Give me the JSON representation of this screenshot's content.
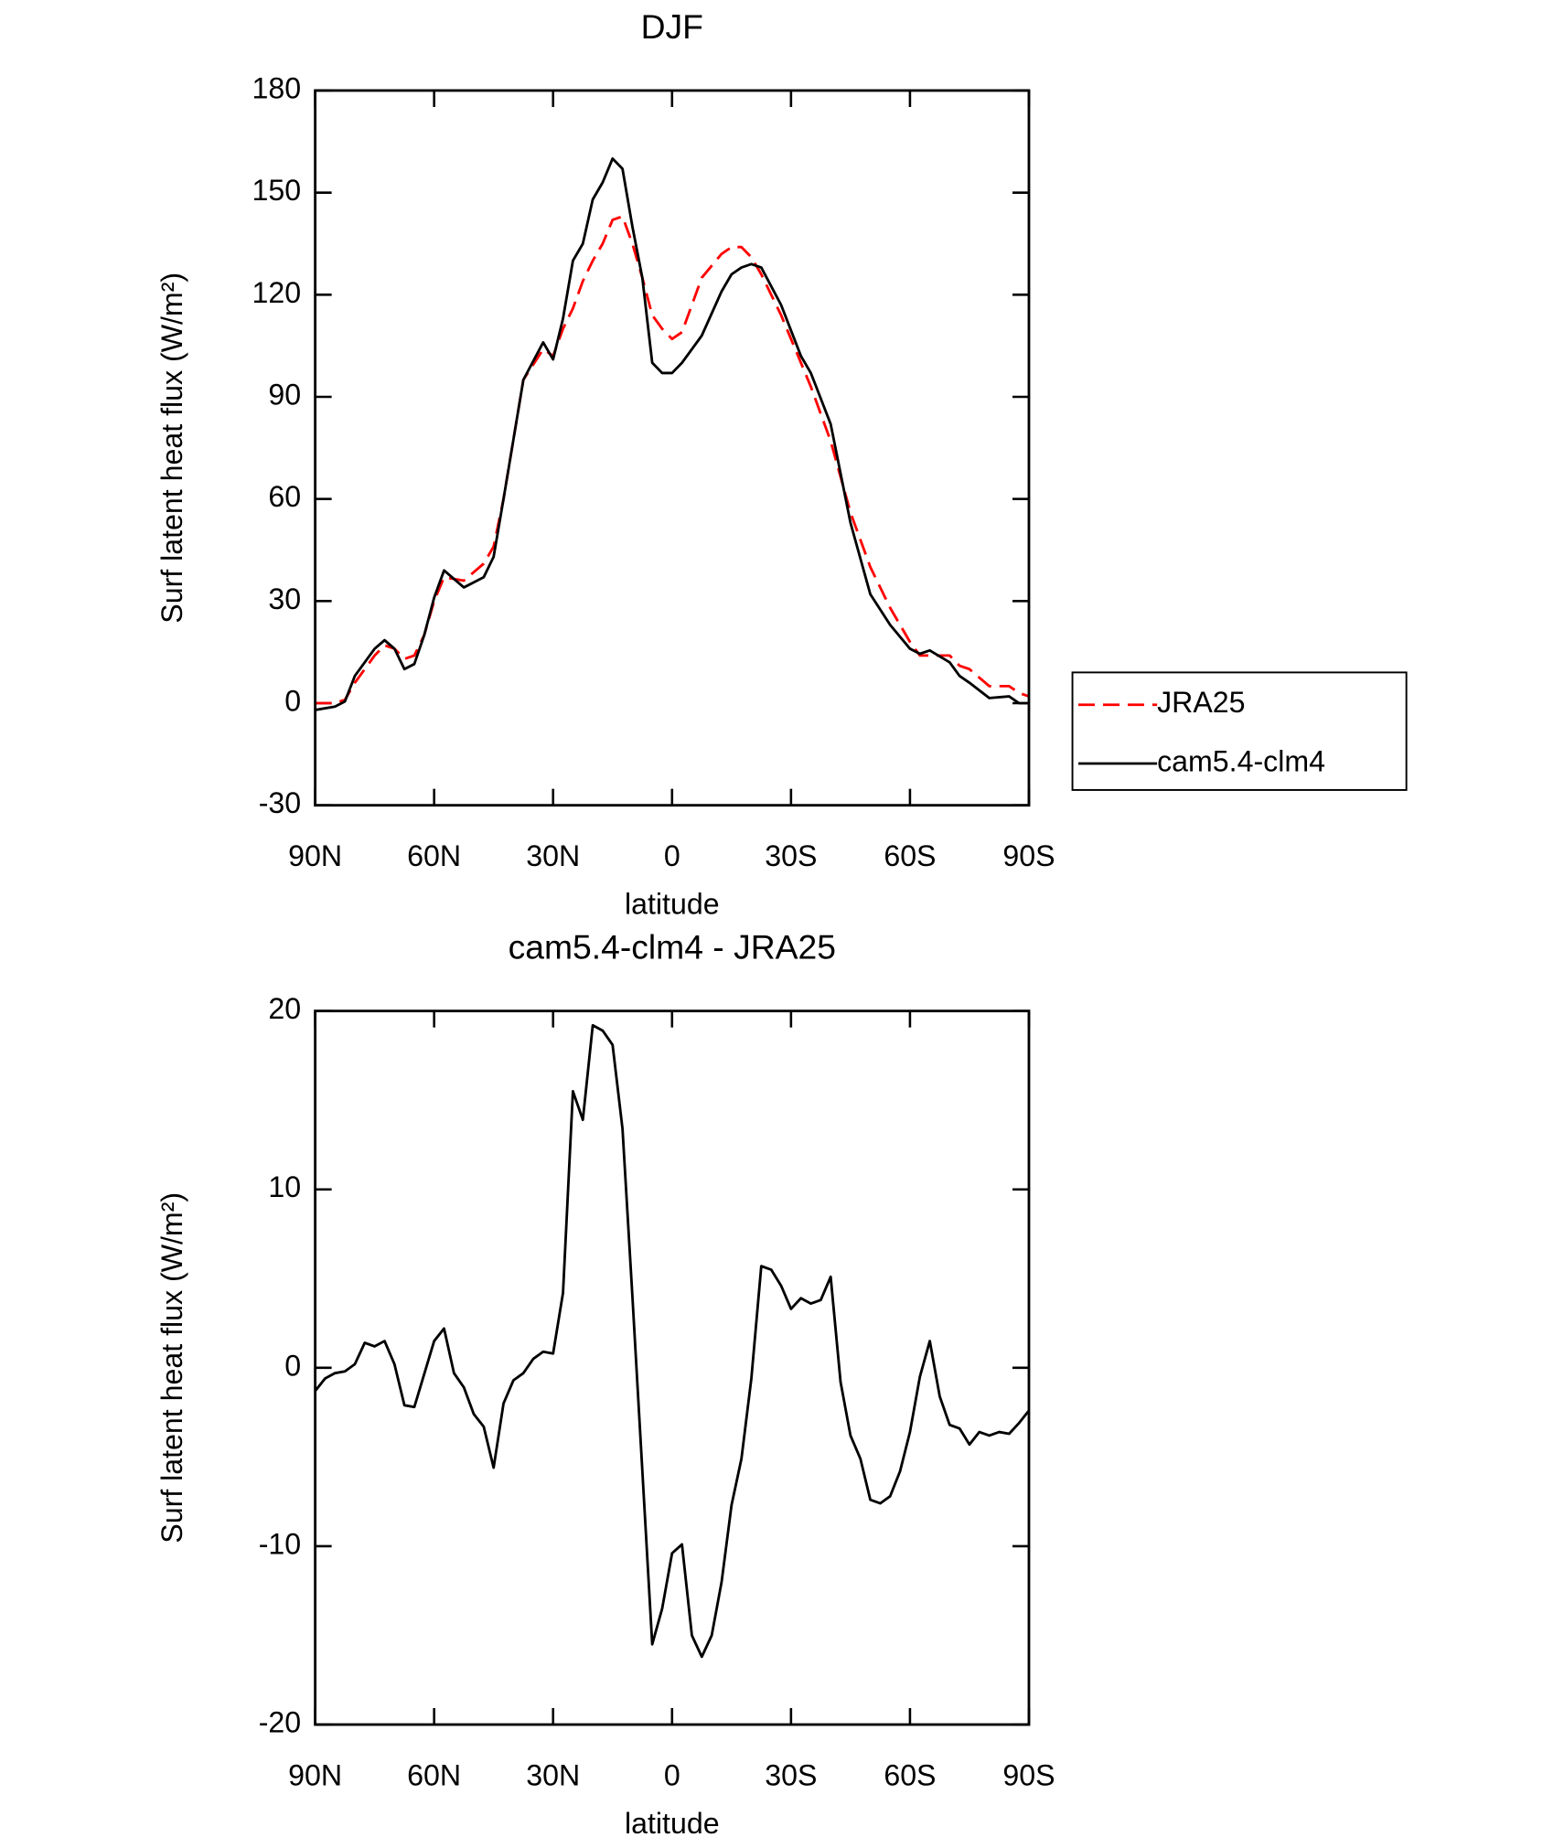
{
  "chart_data": [
    {
      "type": "line",
      "title": "DJF",
      "x_label": "latitude",
      "y_label": "Surf latent heat flux (W/m²)",
      "x": [
        90,
        85,
        82.5,
        80,
        75,
        72.5,
        70,
        67.5,
        65,
        62.5,
        60,
        57.5,
        52.5,
        47.5,
        45,
        42.5,
        37.5,
        32.5,
        30,
        27.5,
        25,
        22.5,
        20,
        17.5,
        15,
        12.5,
        10,
        7.5,
        5,
        2.5,
        0,
        -2.5,
        -7.5,
        -12.5,
        -15,
        -17.5,
        -20,
        -22.5,
        -27.5,
        -32.5,
        -35,
        -40,
        -45,
        -50,
        -55,
        -60,
        -62.5,
        -65,
        -70,
        -72.5,
        -75,
        -80,
        -85,
        -87.5,
        -90
      ],
      "series": [
        {
          "name": "JRA25",
          "color": "#ff0000",
          "line_style": "dashed",
          "values": [
            0,
            0,
            1,
            6,
            14,
            17,
            16,
            13,
            14,
            20,
            30,
            37,
            36,
            41,
            46,
            60,
            95,
            104,
            102,
            110,
            116,
            124,
            130,
            135,
            142,
            143,
            135,
            125,
            114,
            110,
            107,
            109,
            125,
            132,
            134,
            134,
            131,
            126,
            114,
            100,
            93,
            77,
            56,
            40,
            28,
            18,
            14,
            14,
            14,
            11,
            10,
            5,
            5,
            3,
            2
          ]
        },
        {
          "name": "cam5.4-clm4",
          "color": "#000000",
          "line_style": "solid",
          "values": [
            -2,
            -1,
            0.5,
            8,
            16,
            18.5,
            16,
            10,
            11.5,
            20,
            31,
            39,
            34,
            37,
            43,
            60,
            95,
            106,
            101,
            113,
            130,
            135,
            148,
            153,
            160,
            157,
            140,
            125,
            100,
            97,
            97,
            100,
            108,
            121,
            126,
            128,
            129,
            128,
            117,
            102,
            97,
            82,
            53,
            32,
            23,
            16,
            14.5,
            15.5,
            12,
            8,
            6,
            1.5,
            2,
            0,
            0
          ]
        }
      ],
      "xlim": [
        90,
        -90
      ],
      "xticks": [
        {
          "value": 90,
          "label": "90N"
        },
        {
          "value": 60,
          "label": "60N"
        },
        {
          "value": 30,
          "label": "30N"
        },
        0,
        {
          "value": -30,
          "label": "30S"
        },
        {
          "value": -60,
          "label": "60S"
        },
        {
          "value": -90,
          "label": "90S"
        }
      ],
      "ylim": [
        -30,
        180
      ],
      "yticks": [
        -30,
        0,
        30,
        60,
        90,
        120,
        150,
        180
      ],
      "legend": "right",
      "grid": false
    },
    {
      "type": "line",
      "title": "cam5.4-clm4 - JRA25",
      "x_label": "latitude",
      "y_label": "Surf latent heat flux (W/m²)",
      "x": [
        90,
        87.5,
        85,
        82.5,
        80,
        77.5,
        75,
        72.5,
        70,
        67.5,
        65,
        60,
        57.5,
        55,
        52.5,
        50,
        47.5,
        45,
        42.5,
        40,
        37.5,
        35,
        32.5,
        30,
        27.5,
        25,
        22.5,
        20,
        17.5,
        15,
        12.5,
        10,
        5,
        2.5,
        0,
        -2.5,
        -5,
        -7.5,
        -10,
        -12.5,
        -15,
        -17.5,
        -20,
        -22.5,
        -25,
        -27.5,
        -30,
        -32.5,
        -35,
        -37.5,
        -40,
        -42.5,
        -45,
        -47.5,
        -50,
        -52.5,
        -55,
        -57.5,
        -60,
        -62.5,
        -65,
        -67.5,
        -70,
        -72.5,
        -75,
        -77.5,
        -80,
        -82.5,
        -85,
        -87.5,
        -90
      ],
      "series": [
        {
          "name": "cam5.4-clm4 - JRA25",
          "color": "#000000",
          "line_style": "solid",
          "values": [
            -1.3,
            -0.6,
            -0.3,
            -0.2,
            0.2,
            1.4,
            1.2,
            1.5,
            0.2,
            -2.1,
            -2.2,
            1.5,
            2.2,
            -0.3,
            -1.1,
            -2.6,
            -3.3,
            -5.6,
            -2.0,
            -0.7,
            -0.3,
            0.5,
            0.9,
            0.8,
            4.2,
            15.5,
            13.9,
            19.2,
            18.9,
            18.1,
            13.4,
            4,
            -15.5,
            -13.5,
            -10.4,
            -9.9,
            -15,
            -16.2,
            -15,
            -12,
            -7.7,
            -5.1,
            -0.6,
            5.7,
            5.5,
            4.6,
            3.3,
            3.9,
            3.6,
            3.8,
            5.1,
            -0.8,
            -3.8,
            -5.1,
            -7.4,
            -7.6,
            -7.2,
            -5.8,
            -3.6,
            -0.5,
            1.5,
            -1.6,
            -3.2,
            -3.4,
            -4.3,
            -3.6,
            -3.8,
            -3.6,
            -3.7,
            -3.1,
            -2.4
          ]
        }
      ],
      "xlim": [
        90,
        -90
      ],
      "xticks": [
        {
          "value": 90,
          "label": "90N"
        },
        {
          "value": 60,
          "label": "60N"
        },
        {
          "value": 30,
          "label": "30N"
        },
        0,
        {
          "value": -30,
          "label": "30S"
        },
        {
          "value": -60,
          "label": "60S"
        },
        {
          "value": -90,
          "label": "90S"
        }
      ],
      "ylim": [
        -20,
        20
      ],
      "yticks": [
        -20,
        -10,
        0,
        10,
        20
      ],
      "grid": false
    }
  ]
}
